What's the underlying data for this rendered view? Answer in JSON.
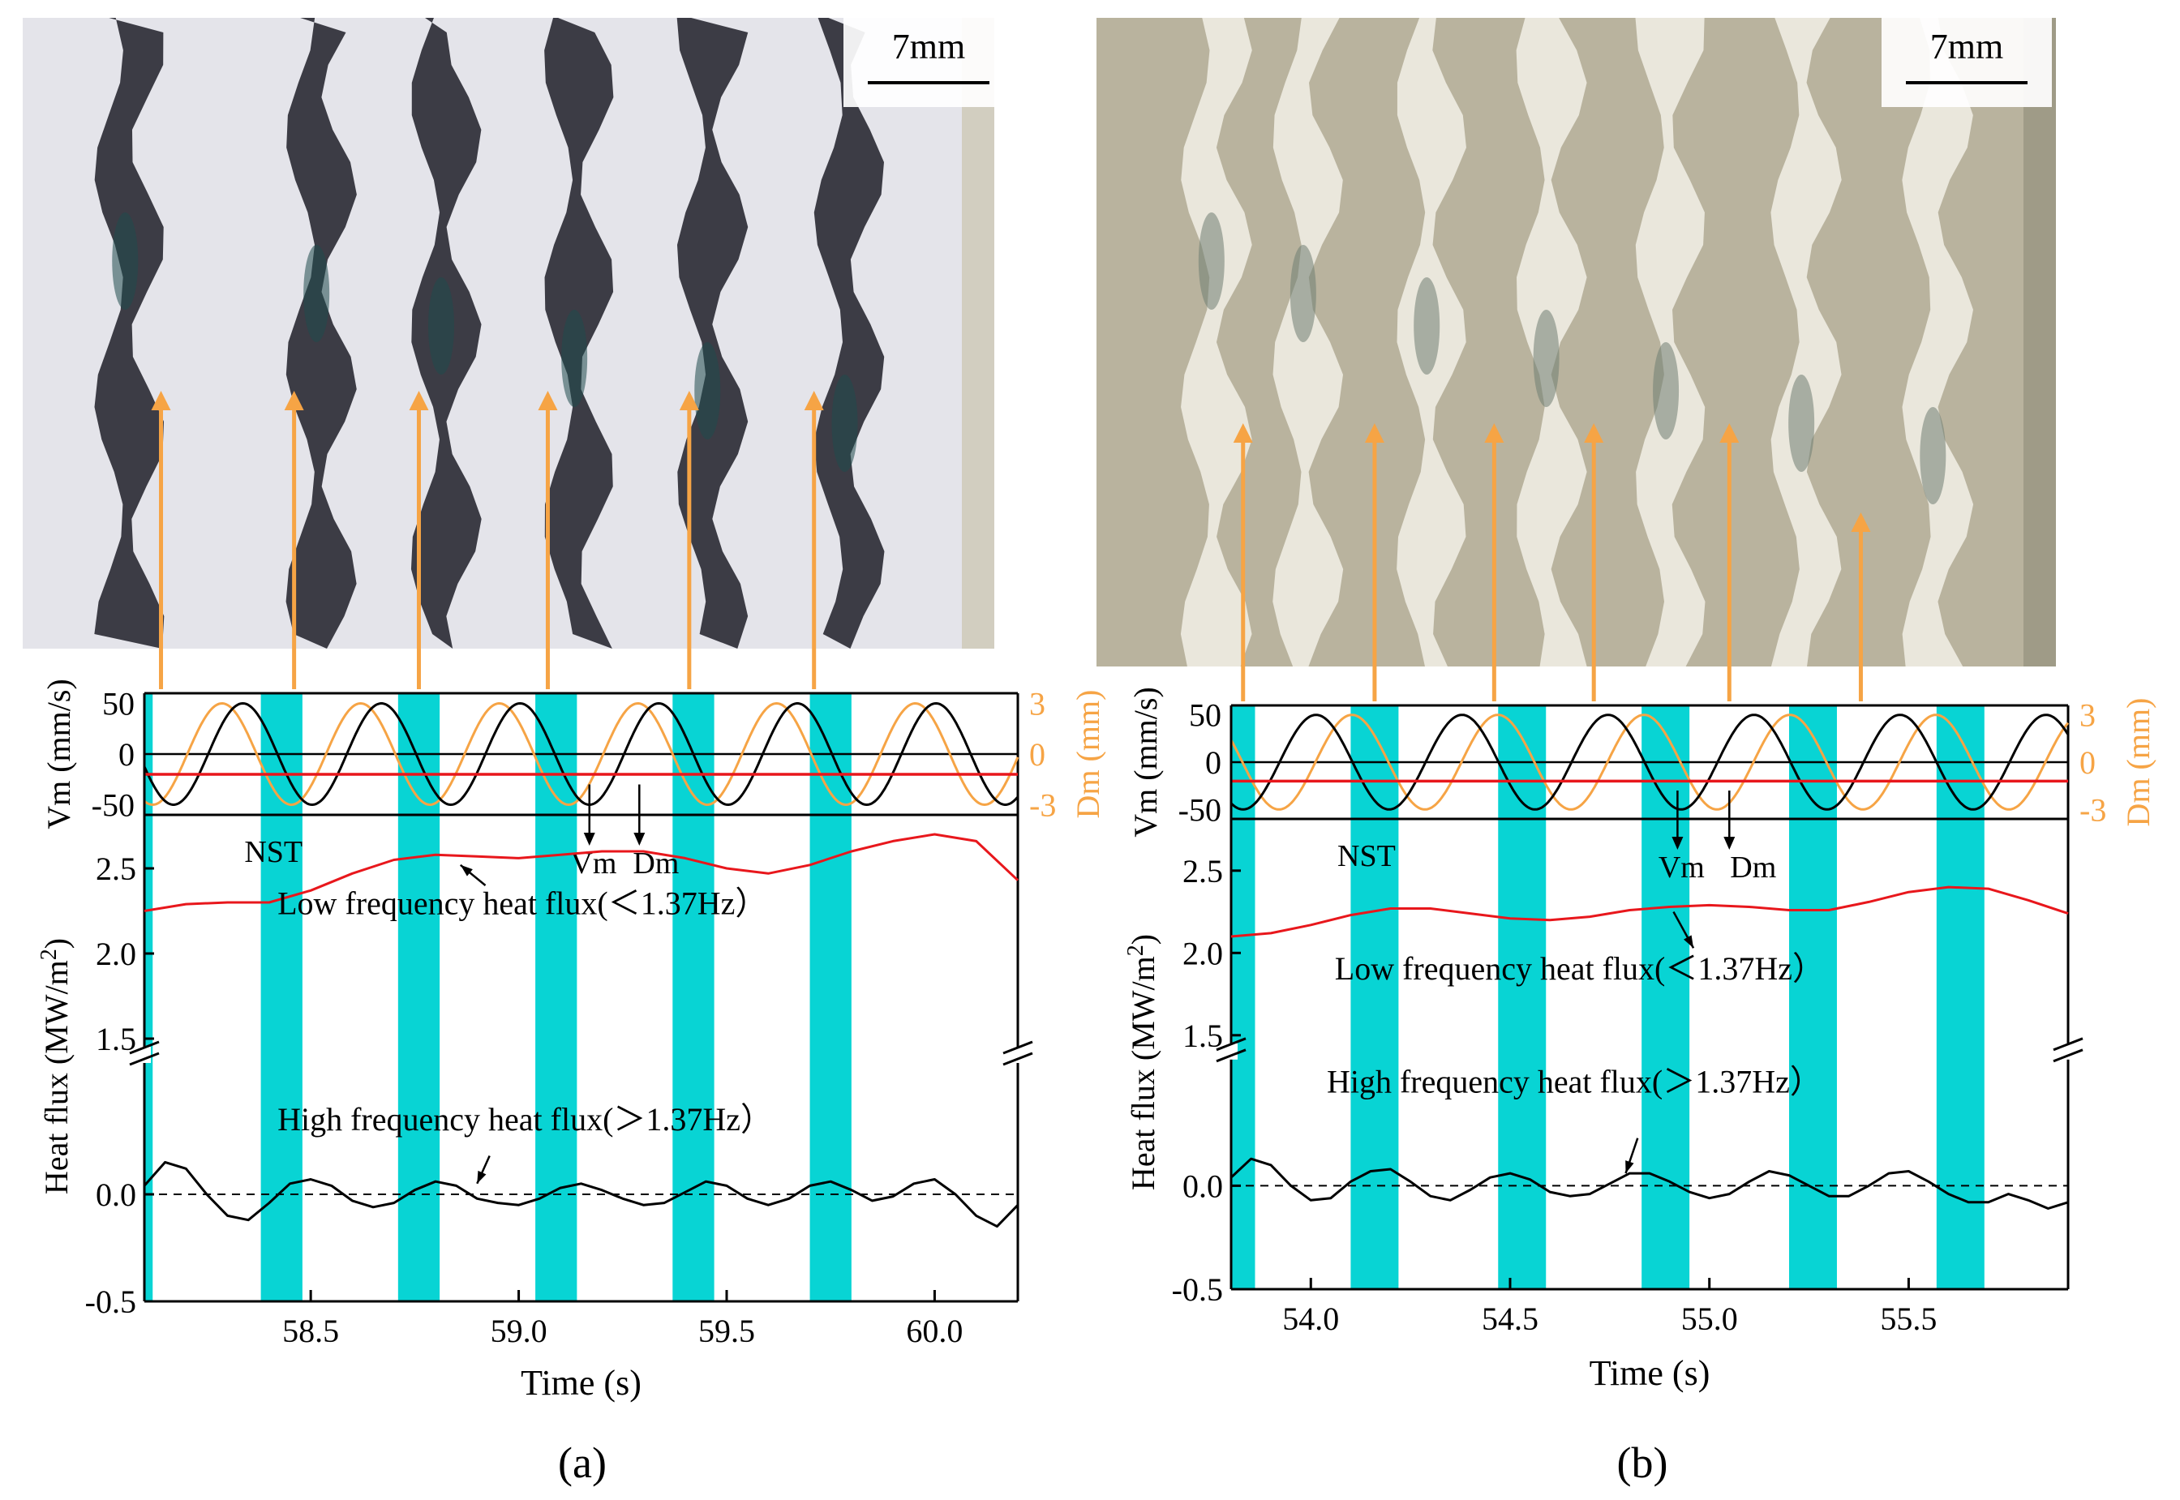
{
  "panels": [
    {
      "id": "a",
      "caption": "(a)",
      "scale_bar": "7mm",
      "photo": {
        "base": "#e4e4ea",
        "stripe": "#2e2e36",
        "stripe_accent": "#1f4a4c",
        "edge": "#c7c0a3",
        "stripe_centers_s": [
          58.12,
          58.58,
          58.88,
          59.2,
          59.52,
          59.85
        ]
      },
      "arrow_times": [
        58.14,
        58.46,
        58.76,
        59.07,
        59.41,
        59.71
      ],
      "chart_data": {
        "type": "line",
        "xlabel": "Time (s)",
        "xlim": [
          58.1,
          60.2
        ],
        "xticks": [
          "58.5",
          "59.0",
          "59.5",
          "60.0"
        ],
        "xtick_values": [
          58.5,
          59.0,
          59.5,
          60.0
        ],
        "nst_label": "NST",
        "nst_bands": [
          [
            58.1,
            58.12
          ],
          [
            58.38,
            58.48
          ],
          [
            58.71,
            58.81
          ],
          [
            59.04,
            59.14
          ],
          [
            59.37,
            59.47
          ],
          [
            59.7,
            59.8
          ]
        ],
        "top": {
          "ylabel_left": "Vm (mm/s)",
          "ylabel_right": "Dm (mm)",
          "yticks_left": [
            "50",
            "0",
            "-50"
          ],
          "ytick_left_values": [
            50,
            0,
            -50
          ],
          "yticks_right": [
            "3",
            "0",
            "-3"
          ],
          "ytick_right_values": [
            3,
            0,
            -3
          ],
          "ylim_left": [
            -60,
            60
          ],
          "ylim_right": [
            -3.6,
            3.6
          ],
          "frequency_hz": 3.0,
          "vm": {
            "name": "Vm",
            "amplitude": 50,
            "trough_time": 58.17
          },
          "dm": {
            "name": "Dm",
            "amplitude": 3,
            "trough_time": 58.12
          },
          "red_level": -20,
          "annotations": [
            {
              "text": "Vm",
              "time": 59.18,
              "line_time": 59.17
            },
            {
              "text": "Dm",
              "time": 59.33,
              "line_time": 59.29
            }
          ]
        },
        "bottom": {
          "ylabel": "Heat flux (MW/m²)",
          "ylabel_parts": [
            "Heat flux (MW/m",
            "2",
            ")"
          ],
          "yticks": [
            "2.5",
            "2.0",
            "1.5",
            "0.0",
            "-0.5"
          ],
          "series": [
            {
              "name": "Low frequency heat flux(＜1.37Hz）",
              "color": "#e8171c",
              "x": [
                58.1,
                58.2,
                58.3,
                58.4,
                58.5,
                58.6,
                58.7,
                58.8,
                58.9,
                59.0,
                59.1,
                59.2,
                59.3,
                59.4,
                59.5,
                59.6,
                59.7,
                59.8,
                59.9,
                60.0,
                60.1,
                60.2
              ],
              "y": [
                2.25,
                2.29,
                2.3,
                2.3,
                2.37,
                2.47,
                2.55,
                2.58,
                2.57,
                2.56,
                2.58,
                2.6,
                2.6,
                2.56,
                2.5,
                2.47,
                2.52,
                2.6,
                2.66,
                2.7,
                2.66,
                2.43
              ]
            },
            {
              "name": "High frequency heat flux(＞1.37Hz）",
              "color": "#000000",
              "x": [
                58.1,
                58.15,
                58.2,
                58.25,
                58.3,
                58.35,
                58.4,
                58.45,
                58.5,
                58.55,
                58.6,
                58.65,
                58.7,
                58.75,
                58.8,
                58.85,
                58.9,
                58.95,
                59.0,
                59.05,
                59.1,
                59.15,
                59.2,
                59.25,
                59.3,
                59.35,
                59.4,
                59.45,
                59.5,
                59.55,
                59.6,
                59.65,
                59.7,
                59.75,
                59.8,
                59.85,
                59.9,
                59.95,
                60.0,
                60.05,
                60.1,
                60.15,
                60.2
              ],
              "y": [
                0.04,
                0.15,
                0.12,
                0.0,
                -0.1,
                -0.12,
                -0.04,
                0.05,
                0.07,
                0.04,
                -0.03,
                -0.06,
                -0.04,
                0.02,
                0.06,
                0.04,
                -0.02,
                -0.04,
                -0.05,
                -0.02,
                0.03,
                0.05,
                0.02,
                -0.02,
                -0.05,
                -0.04,
                0.01,
                0.06,
                0.04,
                -0.02,
                -0.05,
                -0.02,
                0.04,
                0.06,
                0.02,
                -0.03,
                -0.01,
                0.05,
                0.07,
                0.0,
                -0.1,
                -0.15,
                -0.05
              ]
            }
          ],
          "labels": [
            {
              "text": "Low frequency heat flux(＜1.37Hz）",
              "x": 58.42,
              "y": 2.23
            },
            {
              "text": "High frequency heat flux(＞1.37Hz）",
              "x": 58.42,
              "y": 0.3
            }
          ],
          "pointers": [
            {
              "from": [
                58.92,
                2.4
              ],
              "to": [
                58.86,
                2.52
              ]
            },
            {
              "from": [
                58.93,
                0.18
              ],
              "to": [
                58.9,
                0.05
              ]
            }
          ]
        }
      }
    },
    {
      "id": "b",
      "caption": "(b)",
      "scale_bar": "7mm",
      "photo": {
        "base": "#b9b39e",
        "stripe": "#eeece2",
        "stripe_accent": "#6f7e72",
        "edge": "#8d8a78",
        "stripe_centers_s": [
          53.82,
          54.05,
          54.36,
          54.66,
          54.96,
          55.3,
          55.63
        ]
      },
      "arrow_times": [
        53.83,
        54.16,
        54.46,
        54.71,
        55.05,
        55.38
      ],
      "chart_data": {
        "type": "line",
        "xlabel": "Time (s)",
        "xlim": [
          53.8,
          55.9
        ],
        "xticks": [
          "54.0",
          "54.5",
          "55.0",
          "55.5"
        ],
        "xtick_values": [
          54.0,
          54.5,
          55.0,
          55.5
        ],
        "nst_label": "NST",
        "nst_bands": [
          [
            53.8,
            53.86
          ],
          [
            54.1,
            54.22
          ],
          [
            54.47,
            54.59
          ],
          [
            54.83,
            54.95
          ],
          [
            55.2,
            55.32
          ],
          [
            55.57,
            55.69
          ]
        ],
        "top": {
          "ylabel_left": "Vm (mm/s)",
          "ylabel_right": "Dm (mm)",
          "yticks_left": [
            "50",
            "0",
            "-50"
          ],
          "ytick_left_values": [
            50,
            0,
            -50
          ],
          "yticks_right": [
            "3",
            "0",
            "-3"
          ],
          "ytick_right_values": [
            3,
            0,
            -3
          ],
          "ylim_left": [
            -60,
            60
          ],
          "ylim_right": [
            -3.6,
            3.6
          ],
          "frequency_hz": 2.73,
          "vm": {
            "name": "Vm",
            "amplitude": 50,
            "trough_time": 53.83
          },
          "dm": {
            "name": "Dm",
            "amplitude": 3,
            "trough_time": 53.92
          },
          "red_level": -20,
          "annotations": [
            {
              "text": "Vm",
              "time": 54.93,
              "line_time": 54.92
            },
            {
              "text": "Dm",
              "time": 55.11,
              "line_time": 55.05
            }
          ]
        },
        "bottom": {
          "ylabel": "Heat flux (MW/m²)",
          "ylabel_parts": [
            "Heat flux (MW/m",
            "2",
            ")"
          ],
          "yticks": [
            "2.5",
            "2.0",
            "1.5",
            "0.0",
            "-0.5"
          ],
          "series": [
            {
              "name": "Low frequency heat flux(＜1.37Hz）",
              "color": "#e8171c",
              "x": [
                53.8,
                53.9,
                54.0,
                54.1,
                54.2,
                54.3,
                54.4,
                54.5,
                54.6,
                54.7,
                54.8,
                54.9,
                55.0,
                55.1,
                55.2,
                55.3,
                55.4,
                55.5,
                55.6,
                55.7,
                55.8,
                55.9
              ],
              "y": [
                2.1,
                2.12,
                2.17,
                2.23,
                2.27,
                2.27,
                2.24,
                2.21,
                2.2,
                2.22,
                2.26,
                2.28,
                2.29,
                2.28,
                2.26,
                2.26,
                2.31,
                2.37,
                2.4,
                2.39,
                2.32,
                2.24
              ]
            },
            {
              "name": "High frequency heat flux(＞1.37Hz）",
              "color": "#000000",
              "x": [
                53.8,
                53.85,
                53.9,
                53.95,
                54.0,
                54.05,
                54.1,
                54.15,
                54.2,
                54.25,
                54.3,
                54.35,
                54.4,
                54.45,
                54.5,
                54.55,
                54.6,
                54.65,
                54.7,
                54.75,
                54.8,
                54.85,
                54.9,
                54.95,
                55.0,
                55.05,
                55.1,
                55.15,
                55.2,
                55.25,
                55.3,
                55.35,
                55.4,
                55.45,
                55.5,
                55.55,
                55.6,
                55.65,
                55.7,
                55.75,
                55.8,
                55.85,
                55.9
              ],
              "y": [
                0.04,
                0.13,
                0.1,
                0.0,
                -0.07,
                -0.06,
                0.02,
                0.07,
                0.08,
                0.02,
                -0.05,
                -0.07,
                -0.02,
                0.04,
                0.06,
                0.03,
                -0.03,
                -0.05,
                -0.04,
                0.01,
                0.06,
                0.06,
                0.02,
                -0.03,
                -0.06,
                -0.04,
                0.02,
                0.07,
                0.05,
                0.0,
                -0.05,
                -0.05,
                0.0,
                0.06,
                0.07,
                0.02,
                -0.04,
                -0.08,
                -0.08,
                -0.04,
                -0.07,
                -0.11,
                -0.08
              ]
            }
          ],
          "labels": [
            {
              "text": "Low frequency heat flux(＜1.37Hz）",
              "x": 54.06,
              "y": 1.84
            },
            {
              "text": "High frequency heat flux(＞1.37Hz）",
              "x": 54.04,
              "y": 0.45
            }
          ],
          "pointers": [
            {
              "from": [
                54.91,
                2.25
              ],
              "to": [
                54.96,
                2.03
              ]
            },
            {
              "from": [
                54.82,
                0.23
              ],
              "to": [
                54.79,
                0.06
              ]
            }
          ]
        }
      }
    }
  ]
}
